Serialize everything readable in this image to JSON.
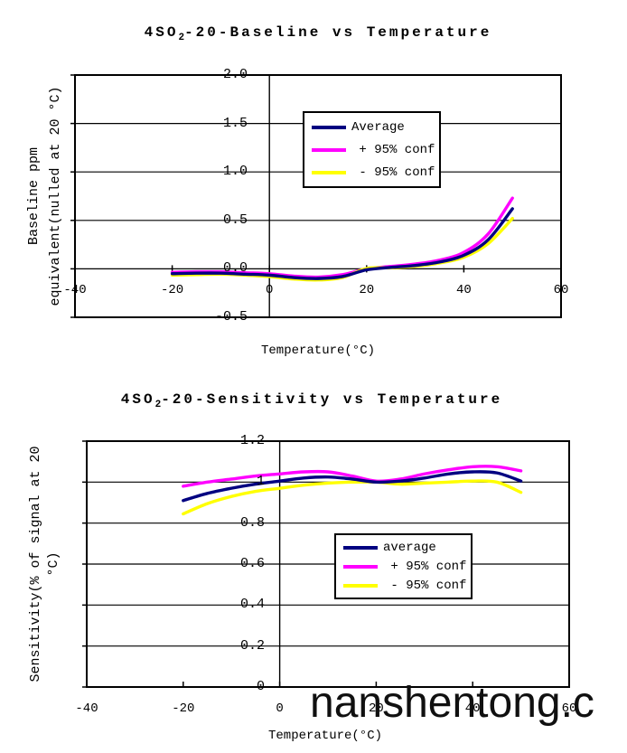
{
  "watermark": {
    "text": "nanshentong.c"
  },
  "chart_data": [
    {
      "type": "line",
      "title": "4SO2-20-Baseline vs Temperature",
      "title_rich": {
        "pre": "4SO",
        "sub": "2",
        "post": "-20-Baseline vs Temperature"
      },
      "xlabel": "Temperature(°C)",
      "ylabel": "Baseline ppm equivalent(nulled at 20 °C)",
      "ylabel_lines": [
        "Baseline ppm",
        "equivalent(nulled at 20 °C)"
      ],
      "xlim": [
        -40,
        60
      ],
      "ylim": [
        -0.5,
        2.0
      ],
      "x_tick_values": [
        -40,
        -20,
        0,
        20,
        40,
        60
      ],
      "x_tick_labels": [
        "-40",
        "-20",
        "0",
        "20",
        "40",
        "60"
      ],
      "y_tick_values": [
        2.0,
        1.5,
        1.0,
        0.5,
        0.0,
        -0.5
      ],
      "y_tick_labels": [
        "2.0",
        "1.5",
        "1.0",
        "0.5",
        "0.0",
        "-0.5"
      ],
      "grid": "horizontal",
      "legend_position": "inside-upper-middle",
      "x": [
        -20,
        -15,
        -10,
        -5,
        0,
        5,
        10,
        15,
        20,
        25,
        30,
        35,
        40,
        45,
        50
      ],
      "series": [
        {
          "name": "Average",
          "color": "#000080",
          "values": [
            -0.05,
            -0.045,
            -0.045,
            -0.055,
            -0.065,
            -0.09,
            -0.1,
            -0.08,
            -0.01,
            0.015,
            0.035,
            0.07,
            0.14,
            0.3,
            0.62
          ]
        },
        {
          "name": " + 95% conf",
          "color": "#FF00FF",
          "values": [
            -0.035,
            -0.03,
            -0.03,
            -0.04,
            -0.05,
            -0.075,
            -0.085,
            -0.06,
            0.0,
            0.025,
            0.05,
            0.09,
            0.17,
            0.36,
            0.73
          ]
        },
        {
          "name": " - 95% conf",
          "color": "#FFFF00",
          "values": [
            -0.065,
            -0.06,
            -0.055,
            -0.065,
            -0.08,
            -0.105,
            -0.115,
            -0.09,
            0.005,
            0.01,
            0.025,
            0.06,
            0.12,
            0.26,
            0.52
          ]
        }
      ]
    },
    {
      "type": "line",
      "title": "4SO2-20-Sensitivity vs Temperature",
      "title_rich": {
        "pre": "4SO",
        "sub": "2",
        "post": "-20-Sensitivity vs Temperature"
      },
      "xlabel": "Temperature(°C)",
      "ylabel": "Sensitivity(% of signal at 20 °C)",
      "ylabel_lines": [
        "Sensitivity(% of signal at 20",
        "°C)"
      ],
      "xlim": [
        -40,
        60
      ],
      "ylim": [
        0,
        1.2
      ],
      "x_tick_values": [
        -40,
        -20,
        0,
        20,
        40,
        60
      ],
      "x_tick_labels": [
        "-40",
        "-20",
        "0",
        "20",
        "40",
        "60"
      ],
      "y_tick_values": [
        1.2,
        1.0,
        0.8,
        0.6,
        0.4,
        0.2,
        0
      ],
      "y_tick_labels": [
        "1.2",
        "1",
        "0.8",
        "0.6",
        "0.4",
        "0.2",
        "0"
      ],
      "grid": "horizontal",
      "legend_position": "inside-lower-middle",
      "x": [
        -20,
        -15,
        -10,
        -5,
        0,
        5,
        10,
        15,
        20,
        25,
        30,
        35,
        40,
        45,
        50
      ],
      "series": [
        {
          "name": "average",
          "color": "#000080",
          "values": [
            0.91,
            0.945,
            0.97,
            0.99,
            1.005,
            1.02,
            1.025,
            1.015,
            1.0,
            1.005,
            1.02,
            1.04,
            1.05,
            1.045,
            1.005
          ]
        },
        {
          "name": " + 95% conf",
          "color": "#FF00FF",
          "values": [
            0.98,
            1.0,
            1.015,
            1.03,
            1.04,
            1.05,
            1.05,
            1.03,
            1.005,
            1.015,
            1.04,
            1.06,
            1.075,
            1.075,
            1.055
          ]
        },
        {
          "name": " - 95% conf",
          "color": "#FFFF00",
          "values": [
            0.845,
            0.895,
            0.93,
            0.955,
            0.97,
            0.985,
            0.995,
            1.0,
            1.0,
            0.99,
            0.995,
            1.0,
            1.005,
            1.0,
            0.95
          ]
        }
      ]
    }
  ]
}
